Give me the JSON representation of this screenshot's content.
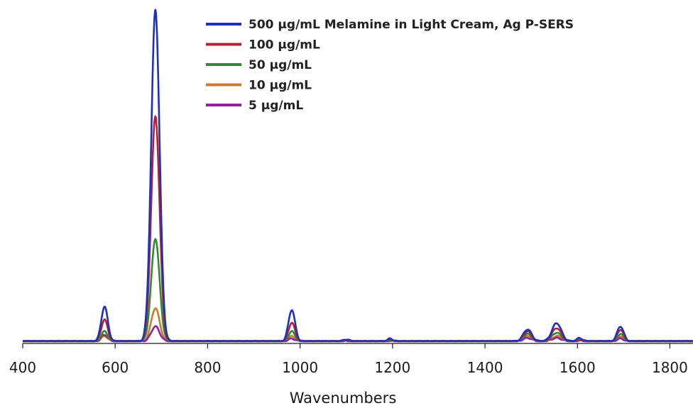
{
  "chart_data": {
    "type": "line",
    "title": "",
    "xlabel": "Wavenumbers",
    "ylabel": "",
    "xlim": [
      400,
      1850
    ],
    "ylim": [
      0,
      100
    ],
    "x_ticks": [
      400,
      600,
      800,
      1000,
      1200,
      1400,
      1600,
      1800
    ],
    "grid": false,
    "legend_position": "top-right",
    "peaks_x": [
      577,
      687,
      982,
      1100,
      1195,
      1492,
      1555,
      1605,
      1693
    ],
    "series": [
      {
        "name": "500 µg/mL Melamine in Light Cream, Ag P-SERS",
        "color": "#1f2fbf",
        "peaks": [
          10.5,
          100,
          9.5,
          0.6,
          0.8,
          3.6,
          5.5,
          1.0,
          4.5
        ]
      },
      {
        "name": "100 µg/mL",
        "color": "#b22234",
        "peaks": [
          6.5,
          68,
          5.6,
          0.4,
          0.5,
          3.0,
          4.0,
          0.5,
          3.5
        ]
      },
      {
        "name": "50 µg/mL",
        "color": "#2e8b2e",
        "peaks": [
          3.0,
          31,
          3.0,
          0.3,
          0.3,
          2.2,
          2.6,
          0.4,
          2.2
        ]
      },
      {
        "name": "10 µg/mL",
        "color": "#cc7a30",
        "peaks": [
          1.5,
          10,
          1.5,
          0.2,
          0.2,
          1.5,
          1.6,
          0.3,
          1.3
        ]
      },
      {
        "name": "5 µg/mL",
        "color": "#9a1fa0",
        "peaks": [
          2.0,
          4.5,
          0.8,
          0.1,
          0.1,
          1.0,
          1.0,
          0.2,
          0.8
        ]
      }
    ]
  }
}
